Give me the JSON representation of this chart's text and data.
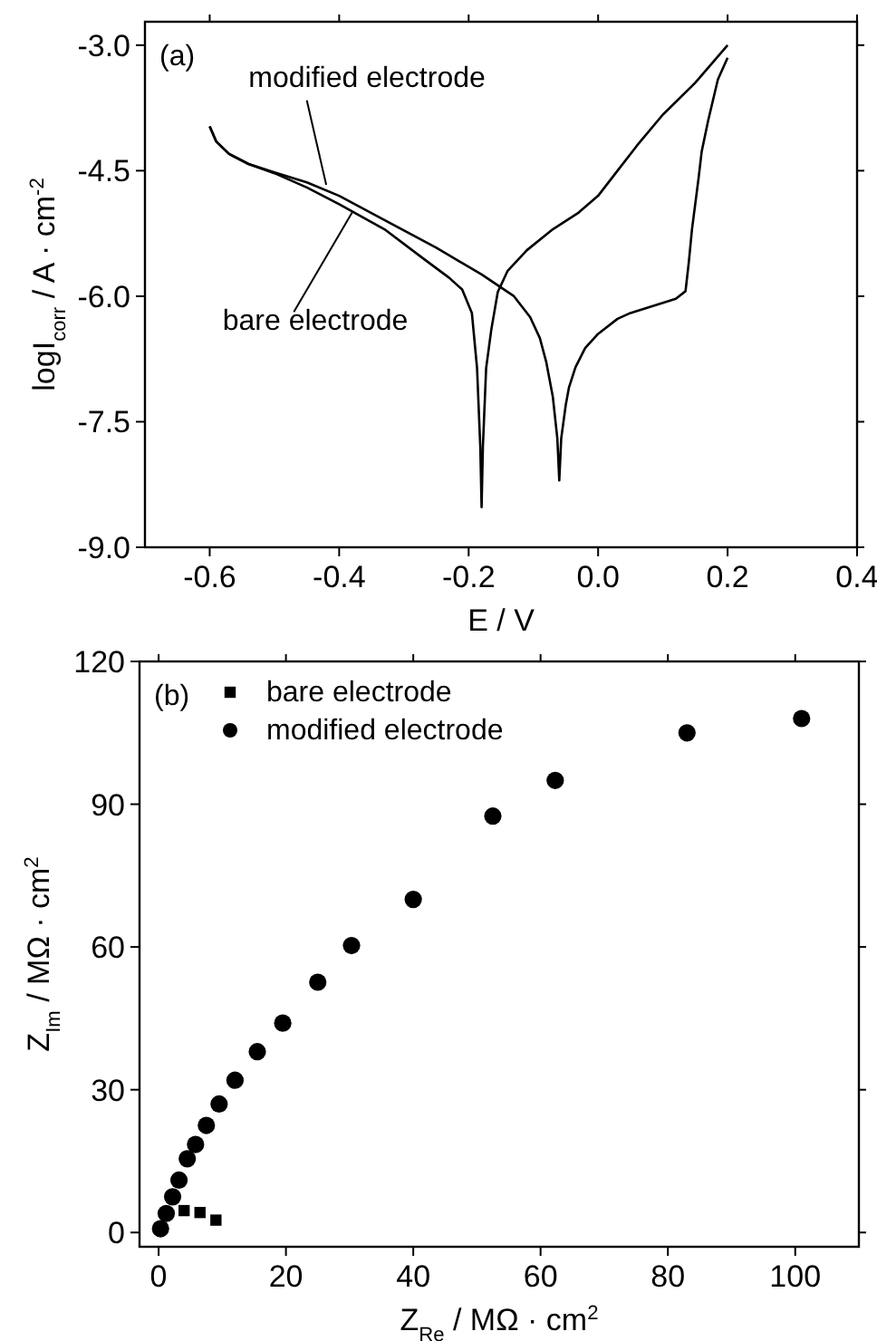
{
  "chart_data": [
    {
      "type": "line",
      "xlabel": "E / V",
      "ylabel": "logI$_{corr}$ / A · cm$^{-2}$",
      "annotations": [
        "(a)"
      ],
      "xlim": [
        -0.7,
        0.4
      ],
      "ylim": [
        -9,
        -2.72
      ],
      "xticks": [
        -0.6,
        -0.4,
        -0.2,
        {
          "value": 0,
          "label": "0.0"
        },
        0.2,
        0.4
      ],
      "yticks": [
        {
          "value": -9,
          "label": "-9.0"
        },
        -7.5,
        {
          "value": -6,
          "label": "-6.0"
        },
        -4.5,
        {
          "value": -3,
          "label": "-3.0"
        }
      ],
      "grid": false,
      "legend": false,
      "marker": "none",
      "line_style": "solid",
      "series": [
        {
          "name": "modified electrode",
          "color": "#000000",
          "x": [
            -0.6,
            -0.59,
            -0.57,
            -0.54,
            -0.5,
            -0.45,
            -0.4,
            -0.33,
            -0.25,
            -0.18,
            -0.13,
            -0.105,
            -0.09,
            -0.08,
            -0.07,
            -0.063,
            -0.06,
            -0.057,
            -0.05,
            -0.045,
            -0.035,
            -0.02,
            0,
            0.03,
            0.05,
            0.1,
            0.12,
            0.135,
            0.14,
            0.145,
            0.155,
            0.16,
            0.17,
            0.185,
            0.2
          ],
          "values": [
            -3.97,
            -4.15,
            -4.3,
            -4.42,
            -4.52,
            -4.64,
            -4.8,
            -5.09,
            -5.42,
            -5.74,
            -6.0,
            -6.25,
            -6.5,
            -6.79,
            -7.2,
            -7.7,
            -8.2,
            -7.7,
            -7.3,
            -7.09,
            -6.85,
            -6.62,
            -6.45,
            -6.27,
            -6.2,
            -6.08,
            -6.03,
            -5.94,
            -5.6,
            -5.2,
            -4.6,
            -4.27,
            -3.9,
            -3.41,
            -3.15
          ]
        },
        {
          "name": "bare electrode",
          "color": "#000000",
          "x": [
            -0.6,
            -0.59,
            -0.57,
            -0.54,
            -0.5,
            -0.45,
            -0.4,
            -0.33,
            -0.27,
            -0.23,
            -0.21,
            -0.195,
            -0.187,
            -0.182,
            -0.18,
            -0.178,
            -0.173,
            -0.165,
            -0.155,
            -0.14,
            -0.11,
            -0.07,
            -0.03,
            0,
            0.03,
            0.06,
            0.1,
            0.15,
            0.2
          ],
          "values": [
            -3.97,
            -4.15,
            -4.3,
            -4.42,
            -4.53,
            -4.7,
            -4.9,
            -5.2,
            -5.55,
            -5.78,
            -5.92,
            -6.2,
            -6.86,
            -7.8,
            -8.52,
            -7.8,
            -6.86,
            -6.4,
            -5.95,
            -5.7,
            -5.45,
            -5.2,
            -5.0,
            -4.8,
            -4.5,
            -4.2,
            -3.83,
            -3.45,
            -3.0
          ]
        }
      ]
    },
    {
      "type": "scatter",
      "xlabel": "Z$_{Re}$ / MΩ · cm$^{2}$",
      "ylabel": "Z$_{Im}$ / MΩ · cm$^{2}$",
      "annotations": [
        "(b)"
      ],
      "xlim": [
        -3,
        110
      ],
      "ylim": [
        -3,
        120
      ],
      "xticks": [
        0,
        20,
        40,
        60,
        80,
        100
      ],
      "yticks": [
        0,
        30,
        60,
        90,
        120
      ],
      "grid": false,
      "legend": "top left",
      "series": [
        {
          "name": "bare electrode",
          "color": "#000000",
          "marker": "square",
          "x": [
            4,
            6.5,
            9
          ],
          "values": [
            4.6,
            4.2,
            2.6
          ]
        },
        {
          "name": "modified electrode",
          "color": "#000000",
          "marker": "circle",
          "x": [
            0.3,
            1.2,
            2.2,
            3.2,
            4.5,
            5.8,
            7.5,
            9.5,
            12,
            15.5,
            19.5,
            25,
            30.3,
            40,
            52.5,
            62.3,
            83,
            101
          ],
          "values": [
            0.8,
            4,
            7.5,
            11,
            15.5,
            18.5,
            22.5,
            27,
            32,
            38,
            44,
            52.6,
            60.3,
            70,
            87.5,
            95,
            105,
            108
          ]
        }
      ]
    }
  ]
}
